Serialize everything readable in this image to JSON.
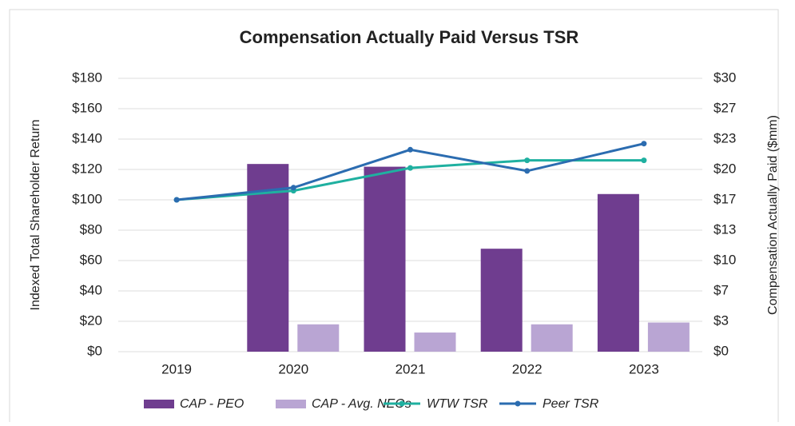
{
  "chart_data": {
    "type": "bar_line",
    "title": "Compensation Actually Paid Versus TSR",
    "y_label": "Indexed Total Shareholder Return",
    "y2_label": "Compensation Actually Paid ($mm)",
    "categories": [
      "2019",
      "2020",
      "2021",
      "2022",
      "2023"
    ],
    "ylim": [
      0,
      180
    ],
    "yticks": [
      {
        "value": 0,
        "label": "$0"
      },
      {
        "value": 20,
        "label": "$20"
      },
      {
        "value": 40,
        "label": "$40"
      },
      {
        "value": 60,
        "label": "$60"
      },
      {
        "value": 80,
        "label": "$80"
      },
      {
        "value": 100,
        "label": "$100"
      },
      {
        "value": 120,
        "label": "$120"
      },
      {
        "value": 140,
        "label": "$140"
      },
      {
        "value": 160,
        "label": "$160"
      },
      {
        "value": 180,
        "label": "$180"
      }
    ],
    "y2lim": [
      0,
      30
    ],
    "y2ticks": [
      {
        "value": 0,
        "label": "$0"
      },
      {
        "value": 3.333,
        "label": "$3"
      },
      {
        "value": 6.667,
        "label": "$7"
      },
      {
        "value": 10,
        "label": "$10"
      },
      {
        "value": 13.333,
        "label": "$13"
      },
      {
        "value": 16.667,
        "label": "$17"
      },
      {
        "value": 20,
        "label": "$20"
      },
      {
        "value": 23.333,
        "label": "$23"
      },
      {
        "value": 26.667,
        "label": "$27"
      },
      {
        "value": 30,
        "label": "$30"
      }
    ],
    "grid": true,
    "legend": "bottom",
    "series": [
      {
        "name": "CAP - PEO",
        "kind": "bar",
        "axis": "y2",
        "color": "#6f3d8f",
        "values": [
          null,
          20.6,
          20.3,
          11.3,
          17.3
        ]
      },
      {
        "name": "CAP - Avg. NEOs",
        "kind": "bar",
        "axis": "y2",
        "color": "#b9a5d3",
        "values": [
          null,
          3.0,
          2.1,
          3.0,
          3.2
        ]
      },
      {
        "name": "WTW TSR",
        "kind": "line",
        "axis": "y",
        "color": "#1fb0a0",
        "values": [
          100,
          106,
          121,
          126,
          126
        ]
      },
      {
        "name": "Peer TSR",
        "kind": "line",
        "axis": "y",
        "color": "#2b6cb0",
        "values": [
          100,
          108,
          133,
          119,
          137
        ]
      }
    ]
  }
}
